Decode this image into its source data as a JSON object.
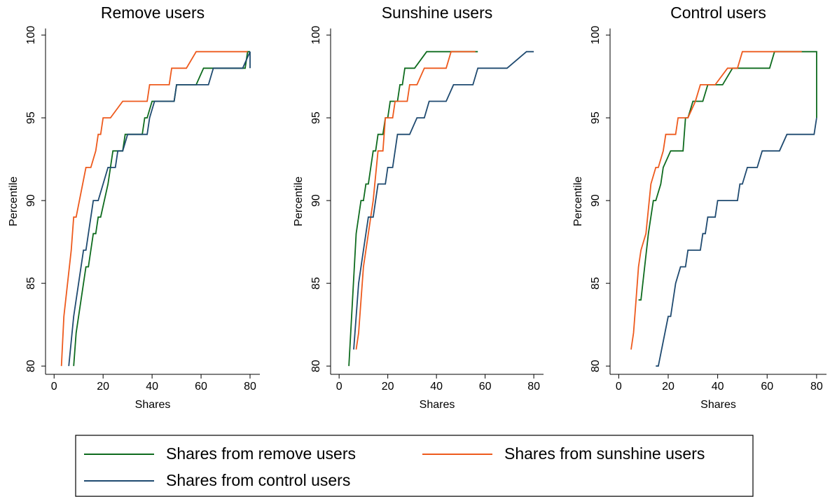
{
  "chart_data": [
    {
      "type": "line",
      "title": "Remove users",
      "x_label": "Shares",
      "y_label": "Percentile",
      "xlim": [
        -3.5,
        84
      ],
      "ylim": [
        79.5,
        100.4
      ],
      "xticks": [
        0,
        20,
        40,
        60,
        80
      ],
      "yticks": [
        80,
        85,
        90,
        95,
        100
      ],
      "series": [
        {
          "color": "#0e6b1e",
          "x": [
            8,
            9,
            13,
            14,
            15,
            16,
            17,
            18,
            19,
            22,
            23,
            24,
            28,
            29,
            36,
            37,
            38,
            40,
            49,
            50,
            58,
            61,
            78,
            79,
            80
          ],
          "values": [
            80,
            82,
            86,
            86,
            87,
            88,
            88,
            89,
            89,
            91,
            92,
            93,
            93,
            94,
            94,
            95,
            95,
            96,
            96,
            97,
            97,
            98,
            98,
            99,
            99
          ]
        },
        {
          "color": "#ee5a1d",
          "x": [
            3,
            4,
            7,
            8,
            9,
            13,
            15,
            17,
            18,
            19,
            20,
            23,
            28,
            38,
            39,
            47,
            48,
            54,
            58,
            79
          ],
          "values": [
            80,
            83,
            87,
            89,
            89,
            92,
            92,
            93,
            94,
            94,
            95,
            95,
            96,
            96,
            97,
            97,
            98,
            98,
            99,
            99
          ]
        },
        {
          "color": "#1f4a70",
          "x": [
            6,
            8,
            11,
            12,
            13,
            15,
            16,
            18,
            20,
            22,
            25,
            26,
            28,
            30,
            38,
            39,
            41,
            49,
            50,
            63,
            65,
            77,
            80,
            80
          ],
          "values": [
            80,
            83,
            86,
            87,
            87,
            89,
            90,
            90,
            91,
            92,
            92,
            93,
            93,
            94,
            94,
            95,
            96,
            96,
            97,
            97,
            98,
            98,
            99,
            98
          ]
        }
      ]
    },
    {
      "type": "line",
      "title": "Sunshine users",
      "x_label": "Shares",
      "y_label": "Percentile",
      "xlim": [
        -3.5,
        84
      ],
      "ylim": [
        79.5,
        100.4
      ],
      "xticks": [
        0,
        20,
        40,
        60,
        80
      ],
      "yticks": [
        80,
        85,
        90,
        95,
        100
      ],
      "series": [
        {
          "color": "#0e6b1e",
          "x": [
            4,
            7,
            9,
            10,
            11,
            12,
            14,
            15,
            16,
            18,
            19,
            20,
            21,
            24,
            25,
            26,
            27,
            31,
            36,
            57
          ],
          "values": [
            80,
            88,
            90,
            90,
            91,
            91,
            93,
            93,
            94,
            94,
            95,
            95,
            96,
            96,
            97,
            97,
            98,
            98,
            99,
            99
          ]
        },
        {
          "color": "#ee5a1d",
          "x": [
            7,
            8,
            10,
            12,
            13,
            14,
            16,
            18,
            19,
            22,
            23,
            28,
            29,
            32,
            35,
            44,
            46,
            56
          ],
          "values": [
            81,
            82,
            86,
            88,
            89,
            90,
            93,
            93,
            95,
            95,
            96,
            96,
            97,
            97,
            98,
            98,
            99,
            99
          ]
        },
        {
          "color": "#1f4a70",
          "x": [
            6,
            8,
            10,
            11,
            12,
            14,
            16,
            19,
            20,
            22,
            24,
            29,
            32,
            35,
            37,
            44,
            47,
            55,
            57,
            69,
            77,
            80
          ],
          "values": [
            81,
            85,
            87,
            88,
            89,
            89,
            91,
            91,
            92,
            92,
            94,
            94,
            95,
            95,
            96,
            96,
            97,
            97,
            98,
            98,
            99,
            99
          ]
        }
      ]
    },
    {
      "type": "line",
      "title": "Control users",
      "x_label": "Shares",
      "y_label": "Percentile",
      "xlim": [
        -3.5,
        84
      ],
      "ylim": [
        79.5,
        100.4
      ],
      "xticks": [
        0,
        20,
        40,
        60,
        80
      ],
      "yticks": [
        80,
        85,
        90,
        95,
        100
      ],
      "series": [
        {
          "color": "#0e6b1e",
          "x": [
            8,
            9,
            12,
            14,
            15,
            17,
            18,
            21,
            26,
            27,
            28,
            30,
            34,
            36,
            42,
            46,
            61,
            63,
            80,
            80
          ],
          "values": [
            84,
            84,
            88,
            90,
            90,
            91,
            92,
            93,
            93,
            95,
            95,
            96,
            96,
            97,
            97,
            98,
            98,
            99,
            99,
            95
          ]
        },
        {
          "color": "#ee5a1d",
          "x": [
            5,
            6,
            7,
            8,
            9,
            11,
            13,
            15,
            16,
            18,
            19,
            23,
            24,
            28,
            31,
            33,
            39,
            44,
            48,
            50,
            74
          ],
          "values": [
            81,
            82,
            84,
            86,
            87,
            88,
            91,
            92,
            92,
            93,
            94,
            94,
            95,
            95,
            96,
            97,
            97,
            98,
            98,
            99,
            99
          ]
        },
        {
          "color": "#1f4a70",
          "x": [
            15,
            16,
            20,
            21,
            23,
            25,
            27,
            28,
            33,
            34,
            35,
            36,
            39,
            40,
            48,
            49,
            50,
            52,
            56,
            58,
            65,
            68,
            79,
            80
          ],
          "values": [
            80,
            80,
            83,
            83,
            85,
            86,
            86,
            87,
            87,
            88,
            88,
            89,
            89,
            90,
            90,
            91,
            91,
            92,
            92,
            93,
            93,
            94,
            94,
            95
          ]
        }
      ]
    }
  ],
  "legend": [
    {
      "name": "Shares from remove users",
      "color": "#0e6b1e"
    },
    {
      "name": "Shares from sunshine users",
      "color": "#ee5a1d"
    },
    {
      "name": "Shares from control users",
      "color": "#1f4a70"
    }
  ]
}
